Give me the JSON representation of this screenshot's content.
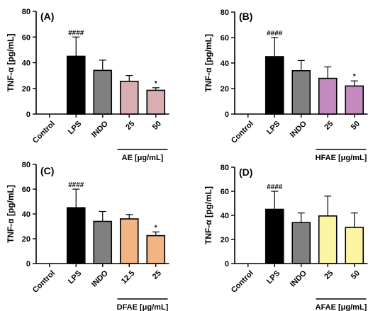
{
  "chart_data": [
    {
      "type": "bar",
      "panel_label": "(A)",
      "ylabel": "TNF-α [pg/mL]",
      "ylim": [
        0,
        80
      ],
      "yticks": [
        0,
        20,
        40,
        60,
        80
      ],
      "categories": [
        "Control",
        "LPS",
        "INDO",
        "25",
        "50"
      ],
      "values": [
        0,
        45,
        34,
        25.5,
        18.5
      ],
      "errors": [
        0,
        15,
        8,
        4.5,
        2
      ],
      "colors": [
        "#ffffff",
        "#000000",
        "#808080",
        "#d9aeb0",
        "#d9aeb0"
      ],
      "annotations": [
        "",
        "####",
        "",
        "",
        "*"
      ],
      "group_label": "AE [μg/mL]",
      "group_range": [
        3,
        4
      ]
    },
    {
      "type": "bar",
      "panel_label": "(B)",
      "ylabel": "TNF-α [pg/mL]",
      "ylim": [
        0,
        80
      ],
      "yticks": [
        0,
        20,
        40,
        60,
        80
      ],
      "categories": [
        "Control",
        "LPS",
        "INDO",
        "25",
        "50"
      ],
      "values": [
        0,
        45,
        34,
        28,
        22
      ],
      "errors": [
        0,
        15,
        8,
        9,
        4
      ],
      "colors": [
        "#ffffff",
        "#000000",
        "#808080",
        "#c48bc0",
        "#c48bc0"
      ],
      "annotations": [
        "",
        "####",
        "",
        "",
        "*"
      ],
      "group_label": "HFAE [μg/mL]",
      "group_range": [
        3,
        4
      ]
    },
    {
      "type": "bar",
      "panel_label": "(C)",
      "ylabel": "TNF-α [pg/mL]",
      "ylim": [
        0,
        80
      ],
      "yticks": [
        0,
        20,
        40,
        60,
        80
      ],
      "categories": [
        "Control",
        "LPS",
        "INDO",
        "12.5",
        "25"
      ],
      "values": [
        0,
        45,
        34,
        36,
        22.5
      ],
      "errors": [
        0,
        15,
        8,
        3.5,
        3
      ],
      "colors": [
        "#ffffff",
        "#000000",
        "#808080",
        "#f2b483",
        "#f2b483"
      ],
      "annotations": [
        "",
        "####",
        "",
        "",
        "*"
      ],
      "group_label": "DFAE [μg/mL]",
      "group_range": [
        3,
        4
      ]
    },
    {
      "type": "bar",
      "panel_label": "(D)",
      "ylabel": "TNF-α [pg/mL]",
      "ylim": [
        0,
        80
      ],
      "yticks": [
        0,
        20,
        40,
        60,
        80
      ],
      "categories": [
        "Control",
        "LPS",
        "INDO",
        "25",
        "50"
      ],
      "values": [
        0,
        45,
        34,
        39.5,
        30
      ],
      "errors": [
        0,
        15,
        8,
        16.5,
        12
      ],
      "colors": [
        "#ffffff",
        "#000000",
        "#808080",
        "#fbf5a3",
        "#fbf5a3"
      ],
      "annotations": [
        "",
        "####",
        "",
        "",
        ""
      ],
      "group_label": "AFAE [μg/mL]",
      "group_range": [
        3,
        4
      ]
    }
  ]
}
